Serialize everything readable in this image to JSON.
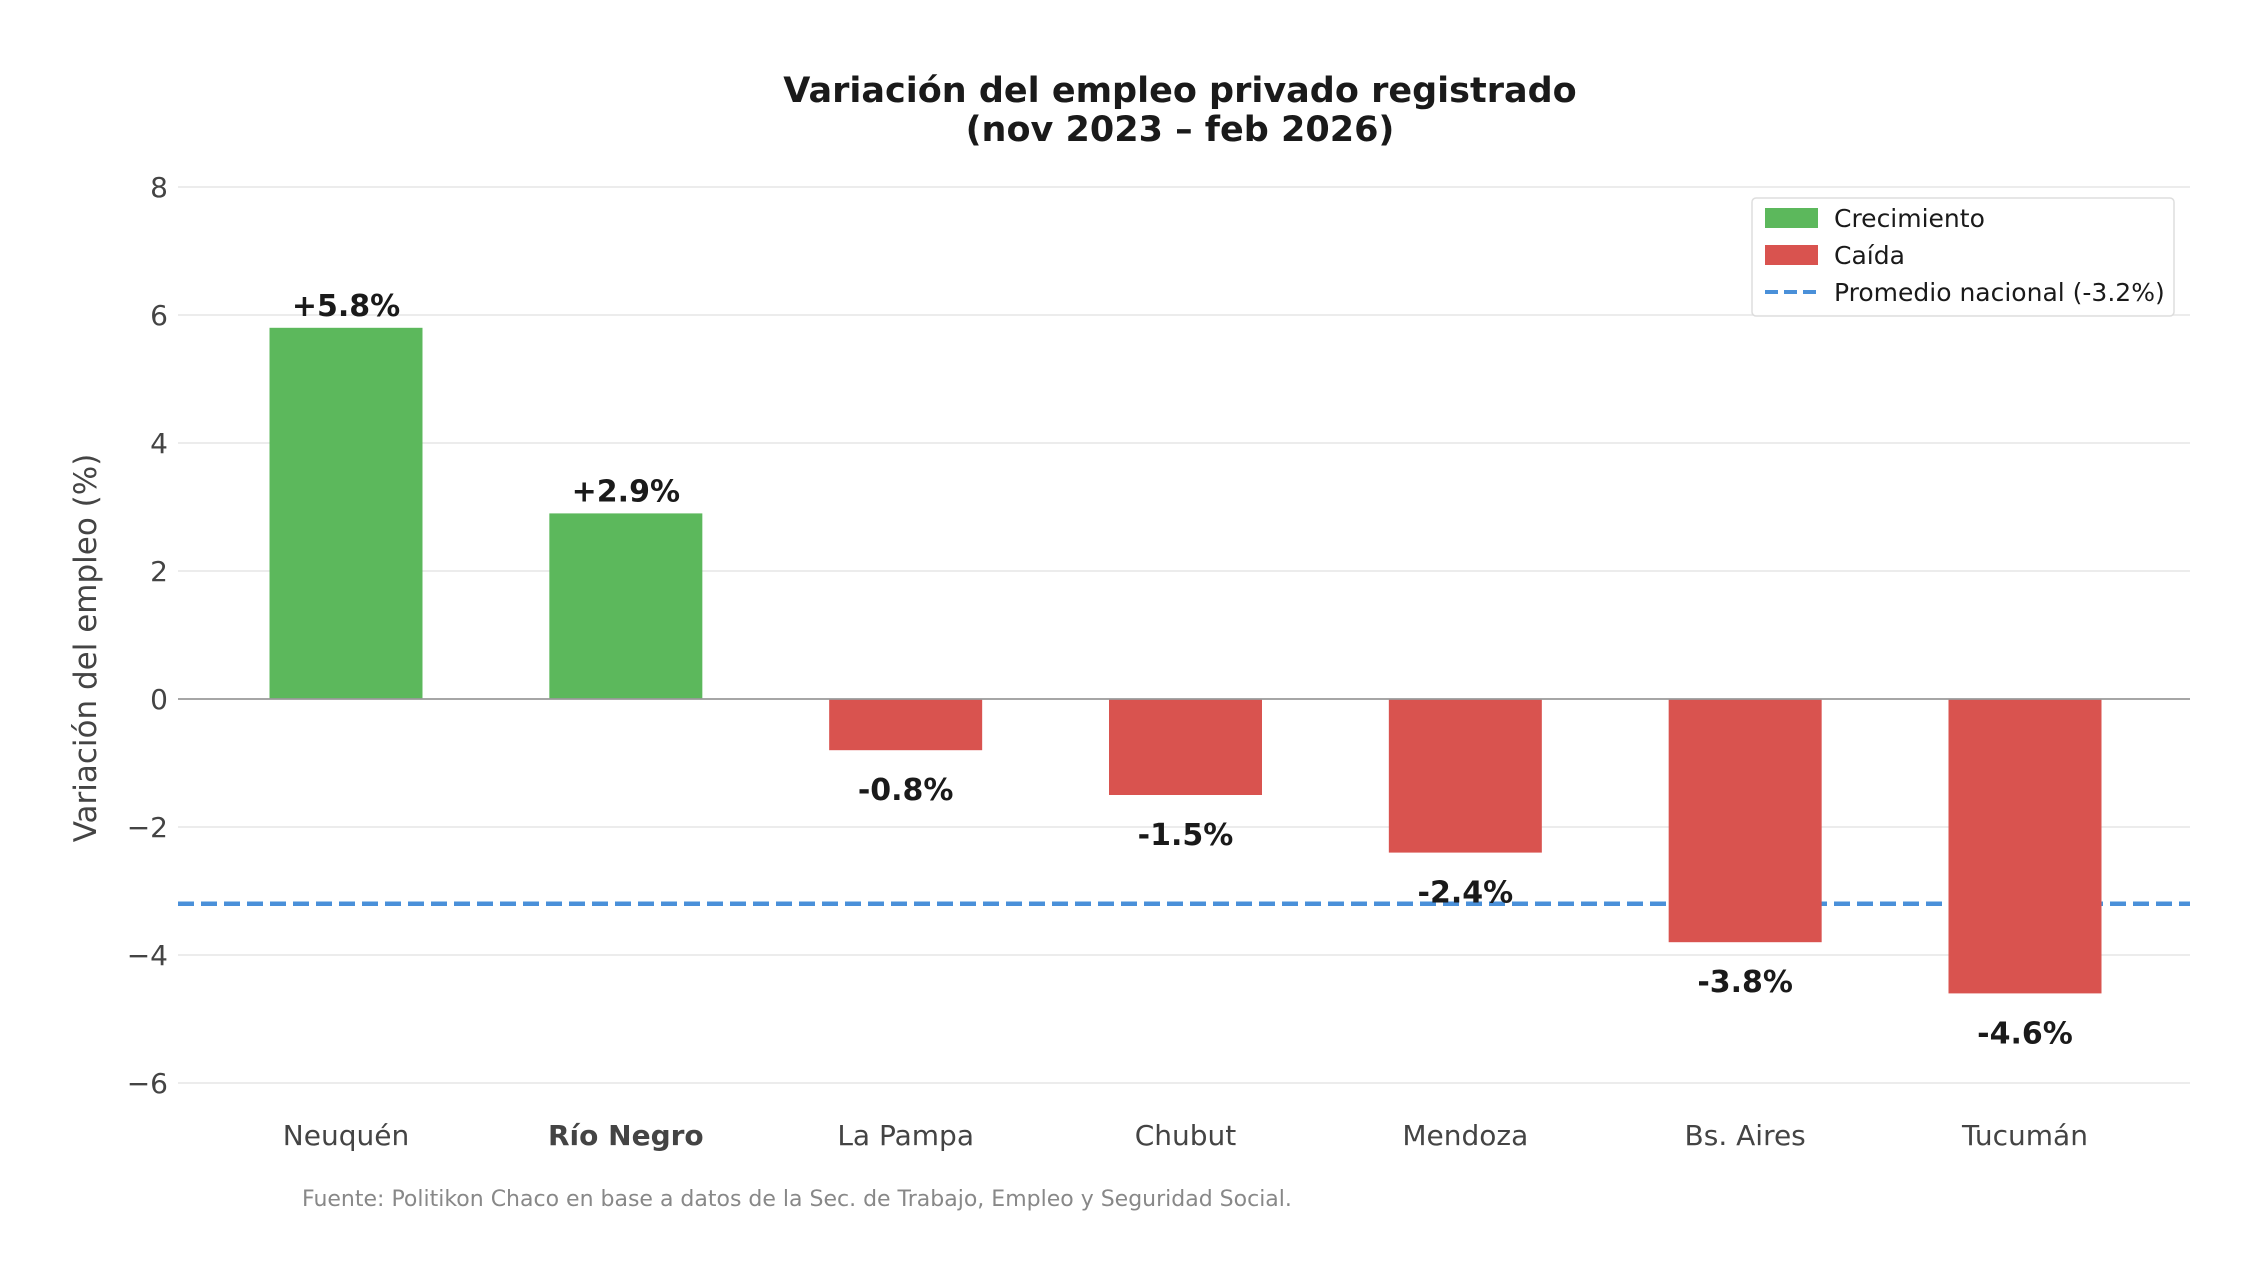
{
  "chart_data": {
    "type": "bar",
    "title": "Variación del empleo privado registrado",
    "subtitle": "(nov 2023 – feb 2026)",
    "xlabel": "",
    "ylabel": "Variación del empleo (%)",
    "categories": [
      "Neuquén",
      "Río Negro",
      "La Pampa",
      "Chubut",
      "Mendoza",
      "Bs. Aires",
      "Tucumán"
    ],
    "highlighted_category": "Río Negro",
    "values": [
      5.8,
      2.9,
      -0.8,
      -1.5,
      -2.4,
      -3.8,
      -4.6
    ],
    "data_labels": [
      "+5.8%",
      "+2.9%",
      "-0.8%",
      "-1.5%",
      "-2.4%",
      "-3.8%",
      "-4.6%"
    ],
    "ylim": [
      -6.5,
      8.5
    ],
    "yticks": [
      8,
      6,
      4,
      2,
      0,
      -2,
      -4,
      -6
    ],
    "ytick_labels": [
      "8",
      "6",
      "4",
      "2",
      "0",
      "−2",
      "−4",
      "−6"
    ],
    "grid": true,
    "reference_line": {
      "value": -3.2,
      "label": "Promedio nacional (-3.2%)",
      "style": "dashed"
    },
    "legend": {
      "placement": "top-right",
      "entries": [
        {
          "label": "Crecimiento",
          "kind": "patch",
          "color": "#5cb85c"
        },
        {
          "label": "Caída",
          "kind": "patch",
          "color": "#d9534f"
        },
        {
          "label": "Promedio nacional (-3.2%)",
          "kind": "dashed-line",
          "color": "#4a90d9"
        }
      ]
    },
    "colors": {
      "positive": "#5cb85c",
      "negative": "#d9534f",
      "reference": "#4a90d9",
      "highlight_label": "#2e7d32",
      "zero_line": "#999999"
    },
    "source": "Fuente: Politikon Chaco en base a datos de la Sec. de Trabajo, Empleo y Seguridad Social."
  }
}
